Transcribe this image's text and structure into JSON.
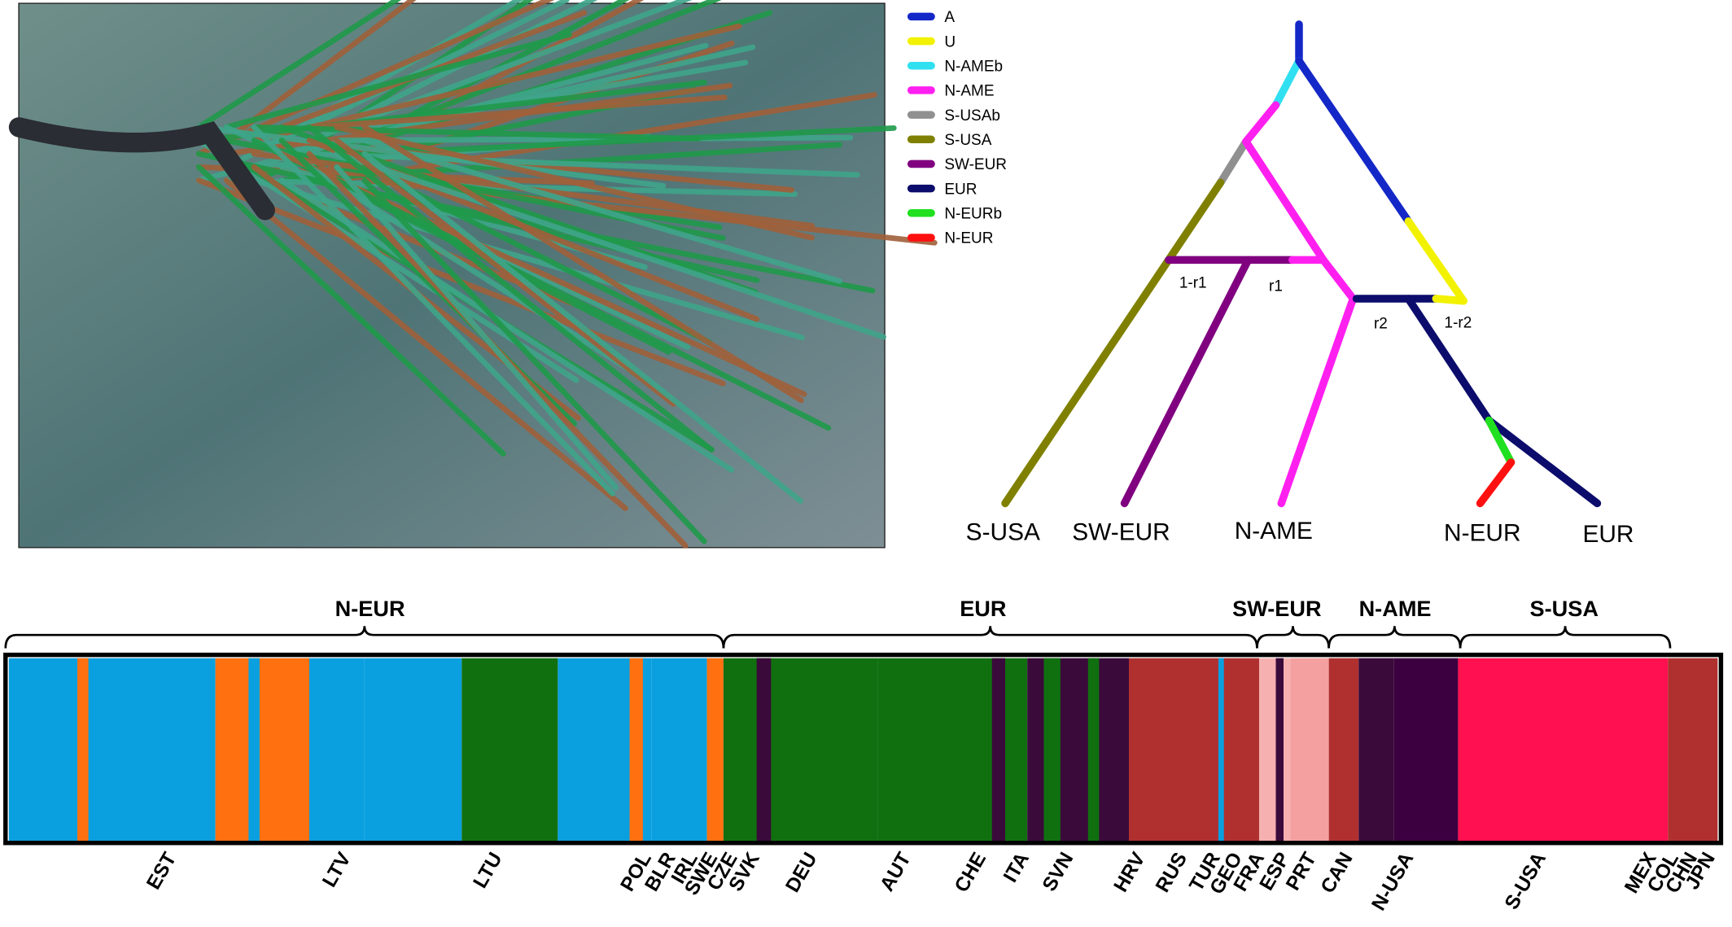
{
  "legend": [
    {
      "label": "A",
      "color": "#1428c8"
    },
    {
      "label": "U",
      "color": "#f2f200"
    },
    {
      "label": "N-AMEb",
      "color": "#30e0f0"
    },
    {
      "label": "N-AME",
      "color": "#ff20f0"
    },
    {
      "label": "S-USAb",
      "color": "#909090"
    },
    {
      "label": "S-USA",
      "color": "#808000"
    },
    {
      "label": "SW-EUR",
      "color": "#800080"
    },
    {
      "label": "EUR",
      "color": "#0c0c6c"
    },
    {
      "label": "N-EURb",
      "color": "#20e020"
    },
    {
      "label": "N-EUR",
      "color": "#ff1010"
    }
  ],
  "tree": {
    "edge_labels": [
      "1-r1",
      "r1",
      "r2",
      "1-r2"
    ],
    "leaves": [
      "S-USA",
      "SW-EUR",
      "N-AME",
      "N-EUR",
      "EUR"
    ]
  },
  "structure": {
    "groups": [
      "N-EUR",
      "EUR",
      "SW-EUR",
      "N-AME",
      "S-USA"
    ],
    "populations": [
      "EST",
      "LTV",
      "LTU",
      "POL",
      "BLR",
      "IRL",
      "SWE",
      "CZE",
      "SVK",
      "DEU",
      "AUT",
      "CHE",
      "ITA",
      "SVN",
      "HRV",
      "RUS",
      "TUR",
      "GEO",
      "FRA",
      "ESP",
      "PRT",
      "CAN",
      "N-USA",
      "S-USA",
      "MEX",
      "COL",
      "CHN",
      "JPN"
    ]
  }
}
